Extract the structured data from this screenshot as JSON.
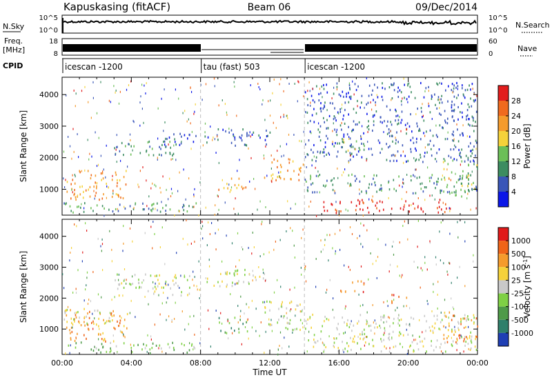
{
  "header": {
    "station": "Kapuskasing (fitACF)",
    "beam": "Beam 06",
    "date": "09/Dec/2014"
  },
  "strips": {
    "nsky_label": "N.Sky",
    "nsky_ticks": [
      "10^5",
      "10^0"
    ],
    "nsearch_label": "N.Search",
    "nsearch_ticks": [
      "10^5",
      "10^0"
    ],
    "freq_label_1": "Freq.",
    "freq_label_2": "[MHz]",
    "freq_ticks": [
      "18",
      "8"
    ],
    "nave_label": "Nave",
    "nave_ticks": [
      "60",
      "0"
    ],
    "cpid_label": "CPID",
    "cpid_segments": [
      {
        "label": "icescan -1200",
        "start_hour": 0,
        "end_hour": 8
      },
      {
        "label": "tau (fast) 503",
        "start_hour": 8,
        "end_hour": 14
      },
      {
        "label": "icescan -1200",
        "start_hour": 14,
        "end_hour": 24
      }
    ]
  },
  "chart_data": [
    {
      "type": "heatmap",
      "title": "",
      "ylabel": "Slant Range [km]",
      "xlabel": "",
      "ylim": [
        180,
        4550
      ],
      "xlim": [
        0,
        24
      ],
      "yticks": [
        "1000",
        "2000",
        "3000",
        "4000"
      ],
      "colorbar_label": "Power [dB]",
      "colorbar_ticks": [
        "4",
        "8",
        "12",
        "16",
        "20",
        "24",
        "28"
      ],
      "colors": [
        "#0b17e8",
        "#3a56b8",
        "#3c8c60",
        "#6cbf58",
        "#f5d23a",
        "#f59b2c",
        "#f06a1e",
        "#e21d1d"
      ],
      "regions": [
        {
          "t0": 0.2,
          "t1": 3.8,
          "r0": 700,
          "r1": 1650,
          "level": 5
        },
        {
          "t0": 0.0,
          "t1": 7.8,
          "r0": 250,
          "r1": 600,
          "level": 2
        },
        {
          "t0": 3.0,
          "t1": 6.8,
          "r0": 2100,
          "r1": 2600,
          "level": 2
        },
        {
          "t0": 5.5,
          "t1": 7.8,
          "r0": 2300,
          "r1": 2800,
          "level": 1
        },
        {
          "t0": 9.0,
          "t1": 10.8,
          "r0": 1000,
          "r1": 1400,
          "level": 5
        },
        {
          "t0": 8.2,
          "t1": 12.0,
          "r0": 2400,
          "r1": 2950,
          "level": 1
        },
        {
          "t0": 11.5,
          "t1": 14.0,
          "r0": 1300,
          "r1": 2000,
          "level": 5
        },
        {
          "t0": 14.0,
          "t1": 24.0,
          "r0": 900,
          "r1": 1500,
          "level": 2
        },
        {
          "t0": 15.0,
          "t1": 22.5,
          "r0": 280,
          "r1": 700,
          "level": 7
        },
        {
          "t0": 16.0,
          "t1": 17.5,
          "r0": 2250,
          "r1": 2700,
          "level": 3
        },
        {
          "t0": 22.0,
          "t1": 24.0,
          "r0": 800,
          "r1": 2000,
          "level": 3
        },
        {
          "t0": 14.0,
          "t1": 24.0,
          "r0": 1900,
          "r1": 4400,
          "level": 1
        }
      ]
    },
    {
      "type": "heatmap",
      "title": "",
      "ylabel": "Slant Range [km]",
      "xlabel": "Time UT",
      "ylim": [
        180,
        4550
      ],
      "xlim": [
        0,
        24
      ],
      "yticks": [
        "1000",
        "2000",
        "3000",
        "4000"
      ],
      "xticks": [
        "00:00",
        "04:00",
        "08:00",
        "12:00",
        "16:00",
        "20:00",
        "00:00"
      ],
      "colorbar_label": "Velocity [m s^-1]",
      "colorbar_ticks": [
        "1000",
        "500",
        "100",
        "25",
        "-25",
        "-100",
        "-500",
        "-1000"
      ],
      "colors": [
        "#1f3fb4",
        "#2f7f6b",
        "#4e9a48",
        "#7fd045",
        "#c9c9c9",
        "#f5d23a",
        "#f59b2c",
        "#ef6418",
        "#e11a1a"
      ],
      "regions": [
        {
          "t0": 0.2,
          "t1": 3.8,
          "r0": 600,
          "r1": 1650,
          "level": 6
        },
        {
          "t0": 0.0,
          "t1": 3.0,
          "r0": 1200,
          "r1": 1700,
          "level": 4
        },
        {
          "t0": 0.0,
          "t1": 7.8,
          "r0": 250,
          "r1": 600,
          "level": 3
        },
        {
          "t0": 3.0,
          "t1": 7.5,
          "r0": 2100,
          "r1": 2800,
          "level": 4
        },
        {
          "t0": 9.0,
          "t1": 10.8,
          "r0": 900,
          "r1": 1400,
          "level": 2
        },
        {
          "t0": 8.2,
          "t1": 12.0,
          "r0": 2400,
          "r1": 2950,
          "level": 4
        },
        {
          "t0": 11.5,
          "t1": 14.0,
          "r0": 1000,
          "r1": 2000,
          "level": 4
        },
        {
          "t0": 14.0,
          "t1": 24.0,
          "r0": 300,
          "r1": 1500,
          "level": 4
        },
        {
          "t0": 16.0,
          "t1": 17.5,
          "r0": 2200,
          "r1": 2600,
          "level": 7
        },
        {
          "t0": 19.0,
          "t1": 20.0,
          "r0": 1800,
          "r1": 2200,
          "level": 7
        },
        {
          "t0": 22.0,
          "t1": 24.0,
          "r0": 600,
          "r1": 1600,
          "level": 6
        }
      ]
    }
  ]
}
